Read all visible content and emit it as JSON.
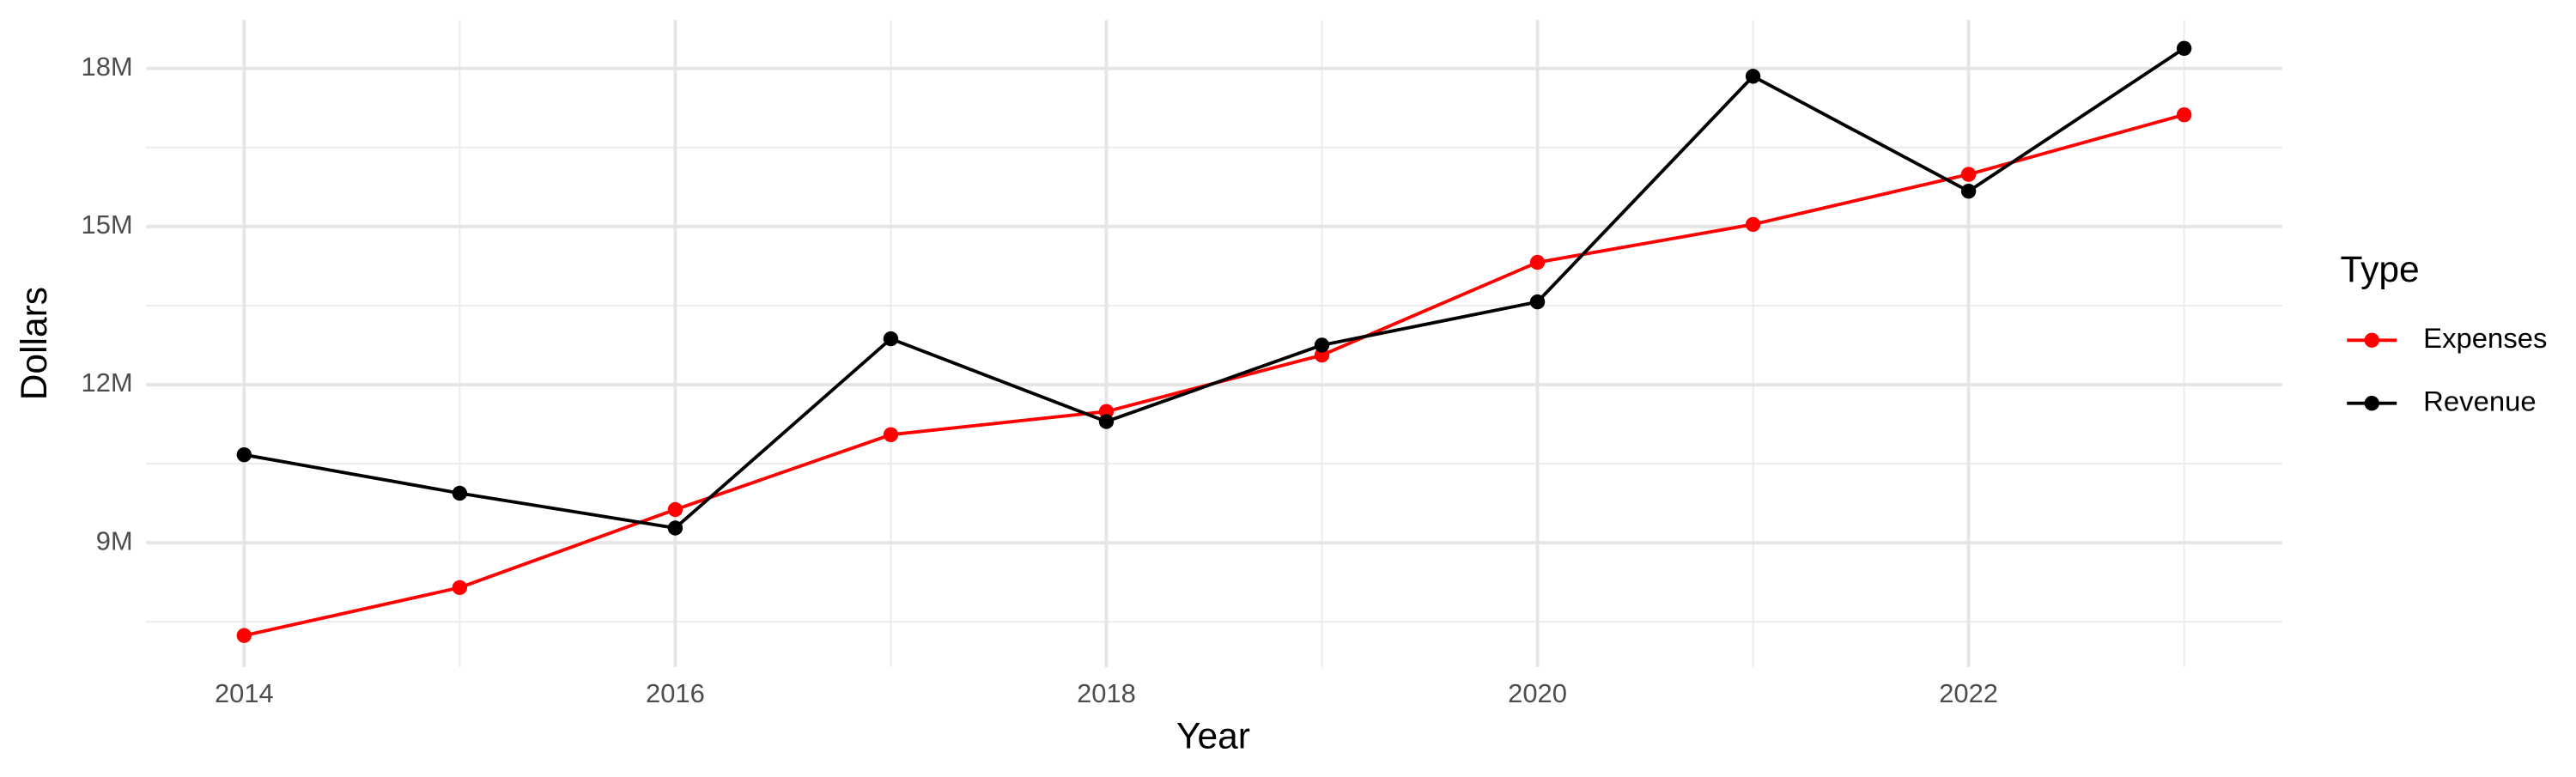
{
  "chart_data": {
    "type": "line",
    "x_label": "Year",
    "y_label": "Dollars",
    "legend_title": "Type",
    "legend_position": "right",
    "x": [
      2014,
      2015,
      2016,
      2017,
      2018,
      2019,
      2020,
      2021,
      2022,
      2023
    ],
    "series": [
      {
        "name": "Expenses",
        "color": "#ff0000",
        "values": [
          7240000,
          8150000,
          9630000,
          11050000,
          11490000,
          12560000,
          14320000,
          15040000,
          15990000,
          17120000
        ]
      },
      {
        "name": "Revenue",
        "color": "#000000",
        "values": [
          10670000,
          9940000,
          9280000,
          12870000,
          11300000,
          12750000,
          13570000,
          17850000,
          15670000,
          18380000
        ]
      }
    ],
    "xlim": [
      2013.545,
      2023.455
    ],
    "xticks": [
      2014,
      2016,
      2018,
      2020,
      2022
    ],
    "x_minor_ticks": [
      2015,
      2017,
      2019,
      2021,
      2023
    ],
    "ylim": [
      6640000,
      18920000
    ],
    "yticks": [
      {
        "value": 9000000,
        "label": "9M"
      },
      {
        "value": 12000000,
        "label": "12M"
      },
      {
        "value": 15000000,
        "label": "15M"
      },
      {
        "value": 18000000,
        "label": "18M"
      }
    ],
    "y_minor_ticks": [
      7500000,
      10500000,
      13500000,
      16500000
    ],
    "grid": true
  }
}
